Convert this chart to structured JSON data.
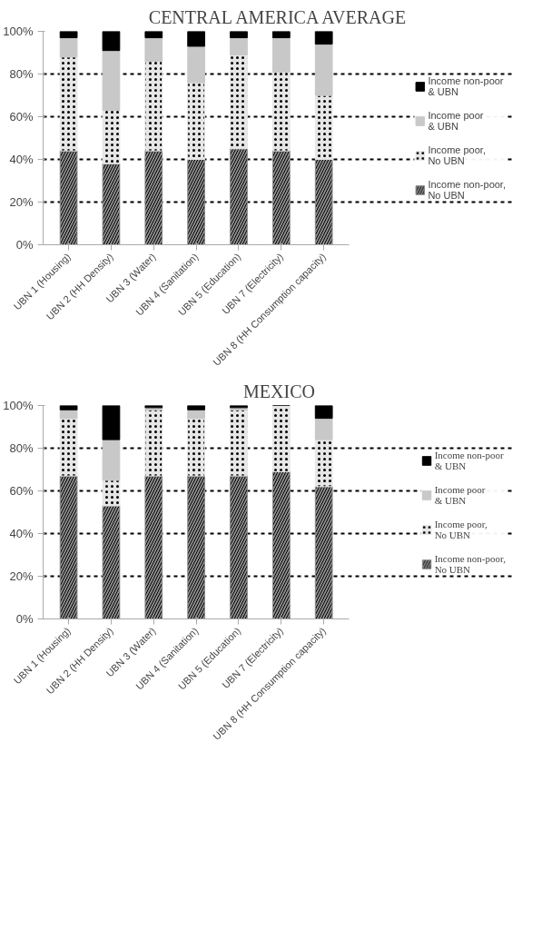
{
  "chart_data": [
    {
      "type": "bar",
      "stacked": true,
      "title": "CENTRAL AMERICA AVERAGE",
      "categories": [
        "UBN 1 (Housing)",
        "UBN 2 (HH Density)",
        "UBN 3 (Water)",
        "UBN 4 (Sanitation)",
        "UBN 5 (Education)",
        "UBN 7 (Electricity)",
        "UBN 8 (HH Consumption capacity)"
      ],
      "series": [
        {
          "name": "Income non-poor, No UBN",
          "color": "#8c8c8c",
          "values": [
            44,
            38,
            44,
            40,
            45,
            44,
            40
          ]
        },
        {
          "name": "Income poor, No UBN",
          "color": "#e6e6e6",
          "values": [
            44,
            25,
            42,
            36,
            44,
            37,
            30
          ]
        },
        {
          "name": "Income poor & UBN",
          "color": "#c8c8c8",
          "values": [
            9,
            28,
            11,
            17,
            8,
            16,
            24
          ]
        },
        {
          "name": "Income non-poor & UBN",
          "color": "#000000",
          "values": [
            3,
            9,
            3,
            7,
            3,
            3,
            6
          ]
        }
      ],
      "ylim": [
        0,
        100
      ],
      "yticks": [
        {
          "value": 0,
          "label": "0%"
        },
        {
          "value": 20,
          "label": "20%"
        },
        {
          "value": 40,
          "label": "40%"
        },
        {
          "value": 60,
          "label": "60%"
        },
        {
          "value": 80,
          "label": "80%"
        },
        {
          "value": 100,
          "label": "100%"
        }
      ],
      "grid": "y",
      "legend": "right"
    },
    {
      "type": "bar",
      "stacked": true,
      "title": "MEXICO",
      "categories": [
        "UBN 1 (Housing)",
        "UBN 2 (HH Density)",
        "UBN 3 (Water)",
        "UBN 4 (Sanitation)",
        "UBN 5 (Education)",
        "UBN 7 (Electricity)",
        "UBN 8 (HH Consumption capacity)"
      ],
      "series": [
        {
          "name": "Income non-poor, No UBN",
          "color": "#8c8c8c",
          "values": [
            67,
            53,
            67,
            67,
            67,
            69,
            62
          ]
        },
        {
          "name": "Income poor, No UBN",
          "color": "#e6e6e6",
          "values": [
            27,
            12,
            31,
            27,
            31,
            31,
            22
          ]
        },
        {
          "name": "Income poor & UBN",
          "color": "#c8c8c8",
          "values": [
            4,
            19,
            1,
            4,
            1,
            0,
            10
          ]
        },
        {
          "name": "Income non-poor & UBN",
          "color": "#000000",
          "values": [
            2,
            16,
            1,
            2,
            1,
            0,
            6
          ]
        }
      ],
      "ylim": [
        0,
        100
      ],
      "yticks": [
        {
          "value": 0,
          "label": "0%"
        },
        {
          "value": 20,
          "label": "20%"
        },
        {
          "value": 40,
          "label": "40%"
        },
        {
          "value": 60,
          "label": "60%"
        },
        {
          "value": 80,
          "label": "80%"
        },
        {
          "value": 100,
          "label": "100%"
        }
      ],
      "grid": "y",
      "legend": "right"
    }
  ]
}
